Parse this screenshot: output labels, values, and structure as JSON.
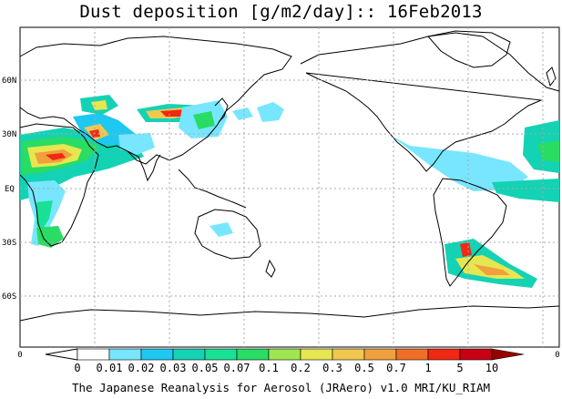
{
  "title": "Dust deposition [g/m2/day]:: 16Feb2013",
  "footer": "The Japanese Reanalysis for Aerosol (JRAero) v1.0 MRI/KU_RIAM",
  "lat_labels": [
    "60N",
    "30N",
    "EQ",
    "30S",
    "60S"
  ],
  "colorbar": {
    "labels": [
      "0",
      "0.01",
      "0.02",
      "0.03",
      "0.05",
      "0.07",
      "0.1",
      "0.2",
      "0.3",
      "0.5",
      "0.7",
      "1",
      "5",
      "10"
    ],
    "colors": [
      "#ffffff",
      "#78e6ff",
      "#1ec8f0",
      "#14d2b4",
      "#18e196",
      "#28dc64",
      "#a0e650",
      "#e6e650",
      "#f0c850",
      "#f0a03c",
      "#f06e28",
      "#f02814",
      "#c80014",
      "#960000",
      "#780000"
    ],
    "left_edge": "0",
    "right_edge": "0"
  },
  "map_colors": {
    "land_outline": "#000000",
    "grid": "#a8a8a8"
  }
}
